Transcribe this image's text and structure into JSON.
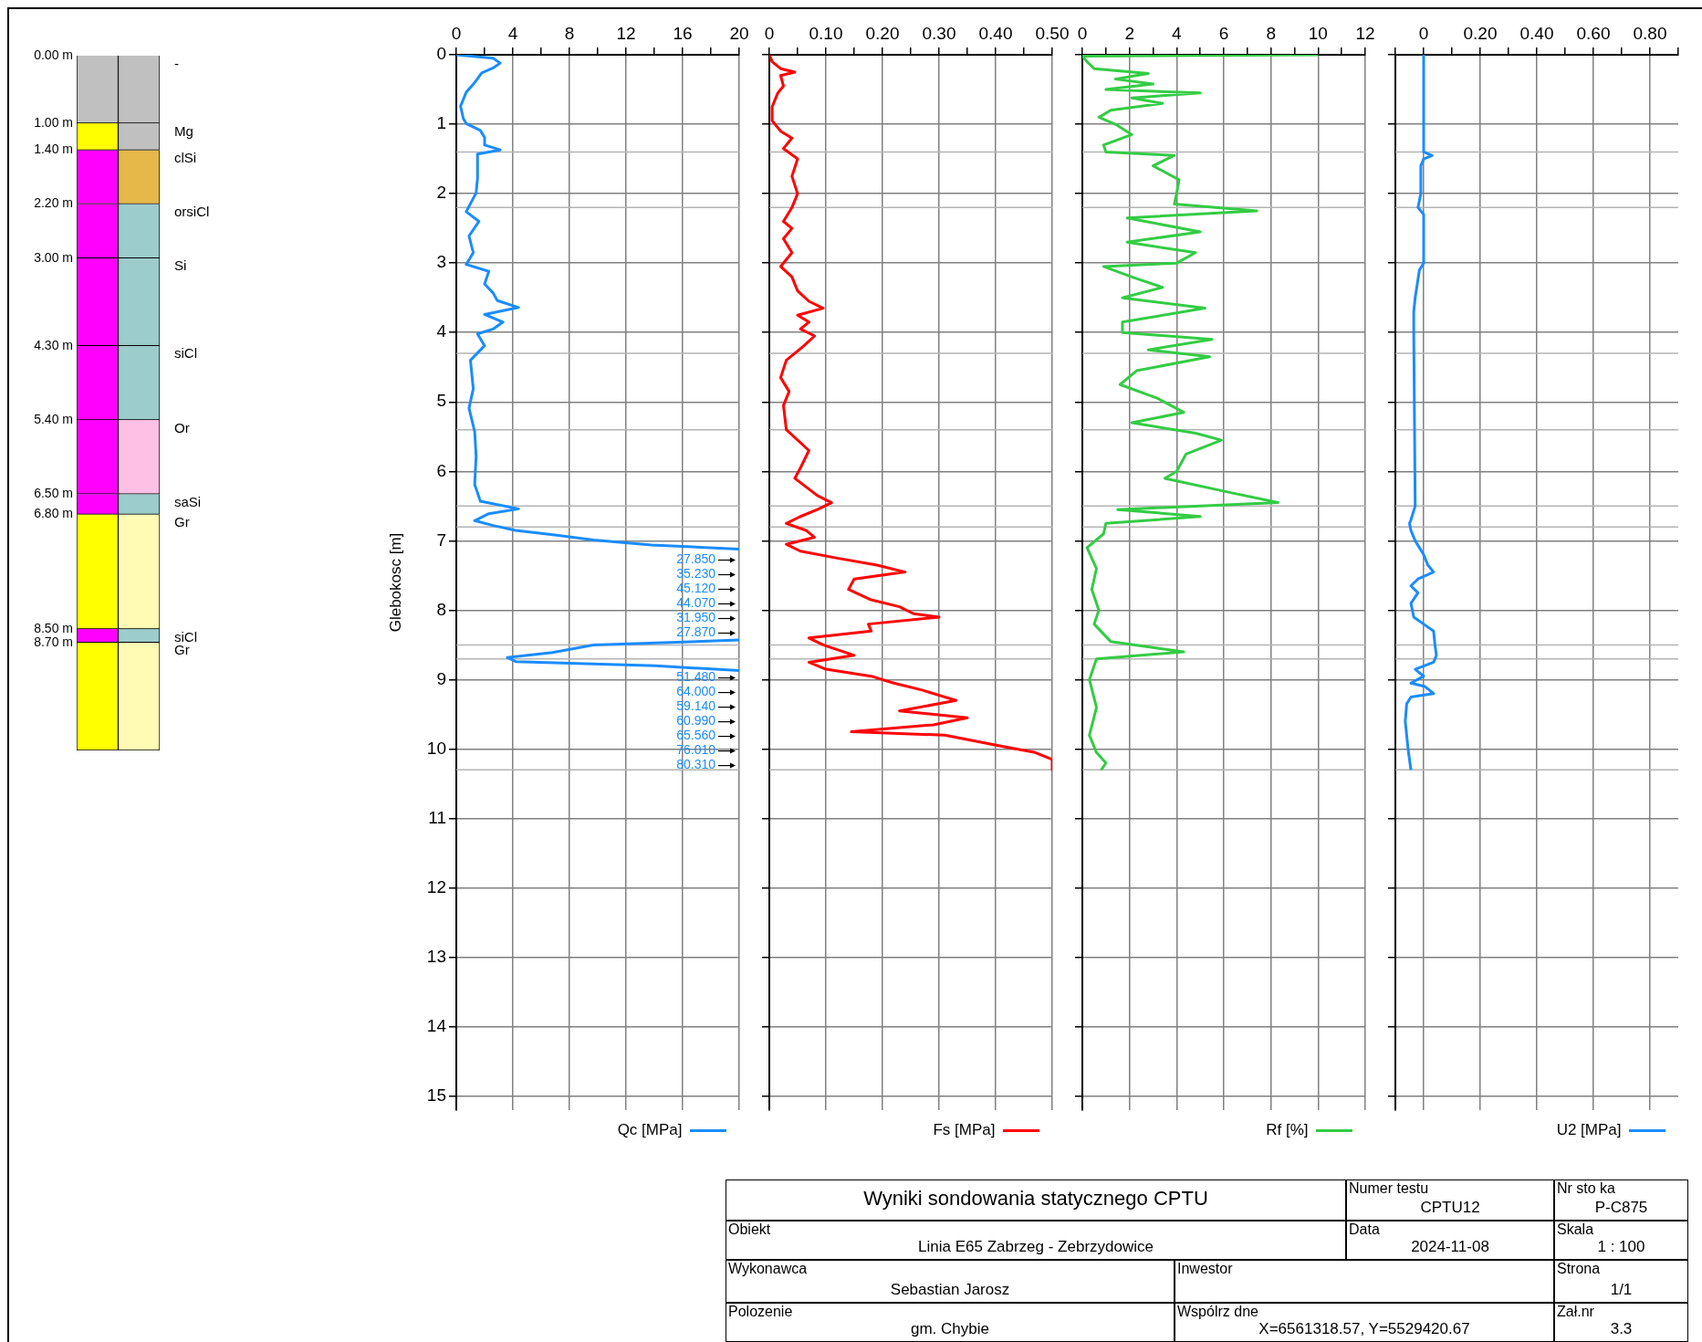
{
  "chart_data": [
    {
      "type": "bar",
      "stacked": true,
      "categories": [
        null,
        null
      ],
      "ylim": [
        10.3,
        0
      ],
      "tick_labels": "y",
      "legend": "right",
      "yticks": [
        {
          "value": 0,
          "label": "0.00 m"
        },
        {
          "value": 1.0,
          "label": "1.00 m"
        },
        {
          "value": 1.4,
          "label": "1.40 m"
        },
        {
          "value": 2.2,
          "label": "2.20 m"
        },
        {
          "value": 3.0,
          "label": "3.00 m"
        },
        {
          "value": 4.3,
          "label": "4.30 m"
        },
        {
          "value": 5.4,
          "label": "5.40 m"
        },
        {
          "value": 6.5,
          "label": "6.50 m"
        },
        {
          "value": 6.8,
          "label": "6.80 m"
        },
        {
          "value": 8.5,
          "label": "8.50 m"
        },
        {
          "value": 8.7,
          "label": "8.70 m"
        }
      ],
      "series": [
        {
          "name": "-",
          "colors": [
            "#c0c0c0",
            "#c0c0c0"
          ],
          "values": [
            1.0,
            1.0
          ]
        },
        {
          "name": "Mg",
          "colors": [
            "#ffff00",
            "#c0c0c0"
          ],
          "values": [
            0.4,
            0.4
          ]
        },
        {
          "name": "clSi",
          "colors": [
            "#ff00ff",
            "#e6b84a"
          ],
          "values": [
            0.8,
            0.8
          ]
        },
        {
          "name": "orsiCl",
          "colors": [
            "#ff00ff",
            "#9ccccc"
          ],
          "values": [
            0.8,
            0.8
          ]
        },
        {
          "name": "Si",
          "colors": [
            "#ff00ff",
            "#9ccccc"
          ],
          "values": [
            1.3,
            1.3
          ]
        },
        {
          "name": "siCl",
          "colors": [
            "#ff00ff",
            "#9ccccc"
          ],
          "values": [
            1.1,
            1.1
          ]
        },
        {
          "name": "Or",
          "colors": [
            "#ff00ff",
            "#ffc0e6"
          ],
          "values": [
            1.1,
            1.1
          ]
        },
        {
          "name": "saSi",
          "colors": [
            "#ff00ff",
            "#9ccccc"
          ],
          "values": [
            0.3,
            0.3
          ]
        },
        {
          "name": "Gr",
          "colors": [
            "#ffff00",
            "#fffab4"
          ],
          "values": [
            1.7,
            1.7
          ]
        },
        {
          "name": "siCl",
          "colors": [
            "#ff00ff",
            "#9ccccc"
          ],
          "values": [
            0.2,
            0.2
          ]
        },
        {
          "name": "Gr",
          "colors": [
            "#ffff00",
            "#fffab4"
          ],
          "values": [
            1.6,
            1.6
          ]
        }
      ]
    },
    {
      "type": "line",
      "ylabel": "Glebokosc [m]",
      "xlim": [
        0,
        20
      ],
      "ylim": [
        15.2,
        0
      ],
      "grid": true,
      "legend": "bottom right",
      "xticks": [
        0,
        {
          "value": 2,
          "label": null
        },
        4,
        {
          "value": 6,
          "label": null
        },
        8,
        {
          "value": 10,
          "label": null
        },
        12,
        {
          "value": 14,
          "label": null
        },
        16,
        {
          "value": 18,
          "label": null
        },
        20
      ],
      "yticks": [
        0,
        1,
        2,
        3,
        4,
        5,
        6,
        7,
        8,
        9,
        10,
        11,
        12,
        13,
        14,
        15
      ],
      "ref_lines": [
        {
          "axis": "y",
          "value": 1.4,
          "color": "#b4b4b4"
        },
        {
          "axis": "y",
          "value": 2.2,
          "color": "#b4b4b4"
        },
        {
          "axis": "y",
          "value": 4.3,
          "color": "#b4b4b4"
        },
        {
          "axis": "y",
          "value": 5.4,
          "color": "#b4b4b4"
        },
        {
          "axis": "y",
          "value": 6.5,
          "color": "#b4b4b4"
        },
        {
          "axis": "y",
          "value": 6.8,
          "color": "#b4b4b4"
        },
        {
          "axis": "y",
          "value": 8.5,
          "color": "#b4b4b4"
        },
        {
          "axis": "y",
          "value": 8.7,
          "color": "#b4b4b4"
        },
        {
          "axis": "y",
          "value": 10.3,
          "color": "#b4b4b4"
        }
      ],
      "series": [
        {
          "name": "Qc [MPa]",
          "color": "#1a8cff",
          "x": [
            0,
            2.6,
            3.1,
            2.6,
            1.8,
            1.3,
            0.7,
            0.3,
            0.5,
            0.7,
            1.7,
            2.0,
            2.0,
            3.1,
            1.5,
            1.5,
            1.4,
            0.7,
            1.6,
            0.9,
            1.2,
            0.7,
            2.3,
            2.0,
            2.6,
            2.9,
            4.4,
            2.0,
            3.3,
            2.6,
            1.5,
            2.0,
            1.0,
            1.2,
            0.9,
            1.3,
            1.4,
            1.3,
            1.7,
            4.4,
            2.3,
            1.3,
            2.6,
            4.2,
            7.1,
            9.7,
            13.8,
            20,
            null,
            20,
            9.7,
            6.8,
            3.6,
            4.2,
            14.1,
            20,
            null
          ],
          "values": [
            0,
            0.05,
            0.12,
            0.19,
            0.26,
            0.4,
            0.54,
            0.74,
            0.92,
            0.99,
            1.09,
            1.19,
            1.3,
            1.37,
            1.43,
            1.78,
            1.99,
            2.26,
            2.4,
            2.61,
            2.85,
            3.02,
            3.12,
            3.3,
            3.43,
            3.54,
            3.64,
            3.74,
            3.85,
            3.95,
            4.02,
            4.19,
            4.4,
            4.81,
            5.09,
            5.43,
            5.78,
            6.19,
            6.43,
            6.54,
            6.61,
            6.71,
            6.78,
            6.85,
            6.92,
            6.99,
            7.06,
            7.12,
            null,
            8.43,
            8.5,
            8.61,
            8.68,
            8.74,
            8.8,
            8.87,
            null
          ]
        }
      ],
      "annotations": [
        "27.850",
        "35.230",
        "45.120",
        "44.070",
        "31.950",
        "27.870",
        "51.480",
        "64.000",
        "59.140",
        "60.990",
        "65.560",
        "76.010",
        "80.310"
      ]
    },
    {
      "type": "line",
      "xlim": [
        0,
        0.5
      ],
      "ylim": [
        15.2,
        0
      ],
      "grid": true,
      "legend": "bottom right",
      "tick_labels": "x",
      "xticks": [
        0,
        {
          "value": 0.05,
          "label": null
        },
        {
          "value": 0.1,
          "label": "0.10"
        },
        {
          "value": 0.15,
          "label": null
        },
        {
          "value": 0.2,
          "label": "0.20"
        },
        {
          "value": 0.25,
          "label": null
        },
        {
          "value": 0.3,
          "label": "0.30"
        },
        {
          "value": 0.35,
          "label": null
        },
        {
          "value": 0.4,
          "label": "0.40"
        },
        {
          "value": 0.45,
          "label": null
        },
        {
          "value": 0.5,
          "label": "0.50"
        }
      ],
      "yticks": [
        0,
        1,
        2,
        3,
        4,
        5,
        6,
        7,
        8,
        9,
        10,
        11,
        12,
        13,
        14,
        15
      ],
      "ref_lines": [
        {
          "axis": "y",
          "value": 1.4,
          "color": "#b4b4b4"
        },
        {
          "axis": "y",
          "value": 2.2,
          "color": "#b4b4b4"
        },
        {
          "axis": "y",
          "value": 4.3,
          "color": "#b4b4b4"
        },
        {
          "axis": "y",
          "value": 5.4,
          "color": "#b4b4b4"
        },
        {
          "axis": "y",
          "value": 6.5,
          "color": "#b4b4b4"
        },
        {
          "axis": "y",
          "value": 6.8,
          "color": "#b4b4b4"
        },
        {
          "axis": "y",
          "value": 8.5,
          "color": "#b4b4b4"
        },
        {
          "axis": "y",
          "value": 8.7,
          "color": "#b4b4b4"
        },
        {
          "axis": "y",
          "value": 10.3,
          "color": "#b4b4b4"
        }
      ],
      "series": [
        {
          "name": "Fs [MPa]",
          "color": "#ff0000",
          "x": [
            0,
            0.005,
            0.02,
            0.045,
            0.02,
            0.025,
            0.015,
            0.005,
            0.005,
            0.02,
            0.04,
            0.025,
            0.05,
            0.04,
            0.05,
            0.04,
            0.025,
            0.04,
            0.025,
            0.04,
            0.02,
            0.04,
            0.05,
            0.07,
            0.095,
            0.05,
            0.07,
            0.055,
            0.08,
            0.06,
            0.03,
            0.02,
            0.035,
            0.025,
            0.03,
            0.07,
            0.055,
            0.045,
            0.085,
            0.11,
            0.085,
            0.055,
            0.03,
            0.065,
            0.08,
            0.03,
            0.055,
            0.12,
            0.19,
            0.24,
            0.15,
            0.14,
            0.18,
            0.23,
            0.255,
            0.3,
            0.175,
            0.18,
            0.07,
            0.095,
            0.15,
            0.07,
            0.1,
            0.18,
            0.22,
            0.27,
            0.33,
            0.23,
            0.35,
            0.29,
            0.145,
            0.31,
            0.405,
            0.47,
            0.5,
            0.5
          ],
          "values": [
            0,
            0.1,
            0.2,
            0.25,
            0.3,
            0.45,
            0.55,
            0.75,
            0.95,
            1.1,
            1.2,
            1.35,
            1.5,
            1.75,
            2.0,
            2.2,
            2.4,
            2.5,
            2.65,
            2.85,
            3.05,
            3.2,
            3.4,
            3.55,
            3.65,
            3.75,
            3.85,
            3.95,
            4.05,
            4.2,
            4.4,
            4.65,
            4.85,
            5.05,
            5.4,
            5.7,
            5.95,
            6.1,
            6.35,
            6.45,
            6.55,
            6.65,
            6.75,
            6.85,
            6.95,
            7.05,
            7.15,
            7.25,
            7.35,
            7.45,
            7.55,
            7.7,
            7.85,
            7.95,
            8.05,
            8.1,
            8.2,
            8.3,
            8.4,
            8.5,
            8.65,
            8.75,
            8.85,
            8.95,
            9.05,
            9.15,
            9.3,
            9.45,
            9.55,
            9.65,
            9.75,
            9.8,
            9.95,
            10.05,
            10.15,
            10.3
          ]
        }
      ]
    },
    {
      "type": "line",
      "xlim": [
        0,
        12
      ],
      "ylim": [
        15.2,
        0
      ],
      "grid": true,
      "legend": "bottom right",
      "tick_labels": "x",
      "xticks": [
        0,
        {
          "value": 1,
          "label": null
        },
        2,
        {
          "value": 3,
          "label": null
        },
        4,
        {
          "value": 5,
          "label": null
        },
        6,
        {
          "value": 7,
          "label": null
        },
        8,
        {
          "value": 9,
          "label": null
        },
        10,
        {
          "value": 11,
          "label": null
        },
        12
      ],
      "yticks": [
        0,
        1,
        2,
        3,
        4,
        5,
        6,
        7,
        8,
        9,
        10,
        11,
        12,
        13,
        14,
        15
      ],
      "ref_lines": [
        {
          "axis": "y",
          "value": 1.4,
          "color": "#b4b4b4"
        },
        {
          "axis": "y",
          "value": 2.2,
          "color": "#b4b4b4"
        },
        {
          "axis": "y",
          "value": 4.3,
          "color": "#b4b4b4"
        },
        {
          "axis": "y",
          "value": 5.4,
          "color": "#b4b4b4"
        },
        {
          "axis": "y",
          "value": 6.5,
          "color": "#b4b4b4"
        },
        {
          "axis": "y",
          "value": 6.8,
          "color": "#b4b4b4"
        },
        {
          "axis": "y",
          "value": 8.5,
          "color": "#b4b4b4"
        },
        {
          "axis": "y",
          "value": 8.7,
          "color": "#b4b4b4"
        },
        {
          "axis": "y",
          "value": 10.3,
          "color": "#b4b4b4"
        }
      ],
      "series": [
        {
          "name": "Rf [%]",
          "color": "#33cc44",
          "x": [
            10.0,
            0,
            0.2,
            0.5,
            2.8,
            1.4,
            3.0,
            1.0,
            5.0,
            2.1,
            3.4,
            1.2,
            0.7,
            1.4,
            2.1,
            0.9,
            1.0,
            3.9,
            3.0,
            4.1,
            4.0,
            3.9,
            7.4,
            1.9,
            5.0,
            1.9,
            4.8,
            4.0,
            0.9,
            2.1,
            3.4,
            1.7,
            5.2,
            1.7,
            1.7,
            5.5,
            2.8,
            5.4,
            2.3,
            1.6,
            3.2,
            4.3,
            2.1,
            4.8,
            5.9,
            4.4,
            4.0,
            3.5,
            6.2,
            8.3,
            1.5,
            5.0,
            1.0,
            0.9,
            0.2,
            0.6,
            0.4,
            0.7,
            0.5,
            1.2,
            4.3,
            0.6,
            0.3,
            0.6,
            0.3,
            0.6,
            1.0,
            0.8
          ],
          "values": [
            0,
            0.02,
            0.1,
            0.2,
            0.27,
            0.35,
            0.42,
            0.5,
            0.55,
            0.62,
            0.7,
            0.8,
            0.9,
            1.0,
            1.15,
            1.3,
            1.4,
            1.45,
            1.6,
            1.8,
            2.0,
            2.15,
            2.25,
            2.35,
            2.55,
            2.7,
            2.85,
            3.0,
            3.05,
            3.2,
            3.35,
            3.5,
            3.65,
            3.85,
            4.0,
            4.1,
            4.25,
            4.35,
            4.55,
            4.75,
            4.95,
            5.15,
            5.3,
            5.45,
            5.55,
            5.75,
            6.0,
            6.1,
            6.3,
            6.45,
            6.55,
            6.65,
            6.75,
            6.9,
            7.1,
            7.4,
            7.7,
            8.0,
            8.2,
            8.45,
            8.6,
            8.7,
            9.0,
            9.4,
            9.8,
            10.05,
            10.2,
            10.3
          ]
        }
      ]
    },
    {
      "type": "line",
      "xlim": [
        -0.1,
        0.9
      ],
      "ylim": [
        15.2,
        0
      ],
      "grid": true,
      "legend": "bottom right",
      "tick_labels": "x",
      "xticks": [
        {
          "value": -0.1,
          "label": null
        },
        0,
        {
          "value": 0.1,
          "label": null
        },
        {
          "value": 0.2,
          "label": "0.20"
        },
        {
          "value": 0.3,
          "label": null
        },
        {
          "value": 0.4,
          "label": "0.40"
        },
        {
          "value": 0.5,
          "label": null
        },
        {
          "value": 0.6,
          "label": "0.60"
        },
        {
          "value": 0.7,
          "label": null
        },
        {
          "value": 0.8,
          "label": "0.80"
        },
        {
          "value": 0.9,
          "label": null
        }
      ],
      "yticks": [
        0,
        1,
        2,
        3,
        4,
        5,
        6,
        7,
        8,
        9,
        10,
        11,
        12,
        13,
        14,
        15
      ],
      "ref_lines": [
        {
          "axis": "y",
          "value": 1.4,
          "color": "#b4b4b4"
        },
        {
          "axis": "y",
          "value": 2.2,
          "color": "#b4b4b4"
        },
        {
          "axis": "y",
          "value": 4.3,
          "color": "#b4b4b4"
        },
        {
          "axis": "y",
          "value": 5.4,
          "color": "#b4b4b4"
        },
        {
          "axis": "y",
          "value": 6.5,
          "color": "#b4b4b4"
        },
        {
          "axis": "y",
          "value": 6.8,
          "color": "#b4b4b4"
        },
        {
          "axis": "y",
          "value": 8.5,
          "color": "#b4b4b4"
        },
        {
          "axis": "y",
          "value": 8.7,
          "color": "#b4b4b4"
        },
        {
          "axis": "y",
          "value": 10.3,
          "color": "#b4b4b4"
        }
      ],
      "series": [
        {
          "name": "U2 [MPa]",
          "color": "#1a8cff",
          "x": [
            0,
            0,
            0.03,
            0,
            -0.01,
            -0.01,
            -0.02,
            0,
            0,
            -0.015,
            -0.03,
            -0.035,
            -0.035,
            -0.03,
            -0.045,
            -0.05,
            -0.045,
            -0.03,
            0,
            0.015,
            0.035,
            -0.02,
            -0.045,
            -0.02,
            -0.045,
            -0.035,
            0,
            0.035,
            0.04,
            0.045,
            0.035,
            -0.03,
            0,
            -0.045,
            0.005,
            0.035,
            -0.045,
            -0.06,
            -0.065,
            -0.055,
            -0.045
          ],
          "values": [
            0,
            1.4,
            1.45,
            1.5,
            1.6,
            2.0,
            2.2,
            2.3,
            3.0,
            3.1,
            3.5,
            3.7,
            4.0,
            6.5,
            6.7,
            6.75,
            6.85,
            7.0,
            7.2,
            7.35,
            7.45,
            7.55,
            7.65,
            7.75,
            7.9,
            8.1,
            8.2,
            8.3,
            8.5,
            8.65,
            8.75,
            8.85,
            8.95,
            9.05,
            9.1,
            9.2,
            9.25,
            9.35,
            9.6,
            10.0,
            10.3
          ]
        }
      ]
    },
    {
      "type": "other",
      "title": "Wyniki sondowania statycznego CPTU",
      "annotations": [
        "Numer testu",
        "CPTU12",
        "Nr sto ka",
        "P-C875",
        "Obiekt",
        "Linia E65 Zabrzeg - Zebrzydowice",
        "Data",
        "2024-11-08",
        "Skala",
        "1 : 100",
        "Wykonawca",
        "Sebastian Jarosz",
        "Inwestor",
        "Strona",
        "1/1",
        "Polozenie",
        "gm. Chybie",
        "Wspólrz dne",
        "X=6561318.57, Y=5529420.67",
        "Zał.nr",
        "3.3"
      ]
    }
  ]
}
